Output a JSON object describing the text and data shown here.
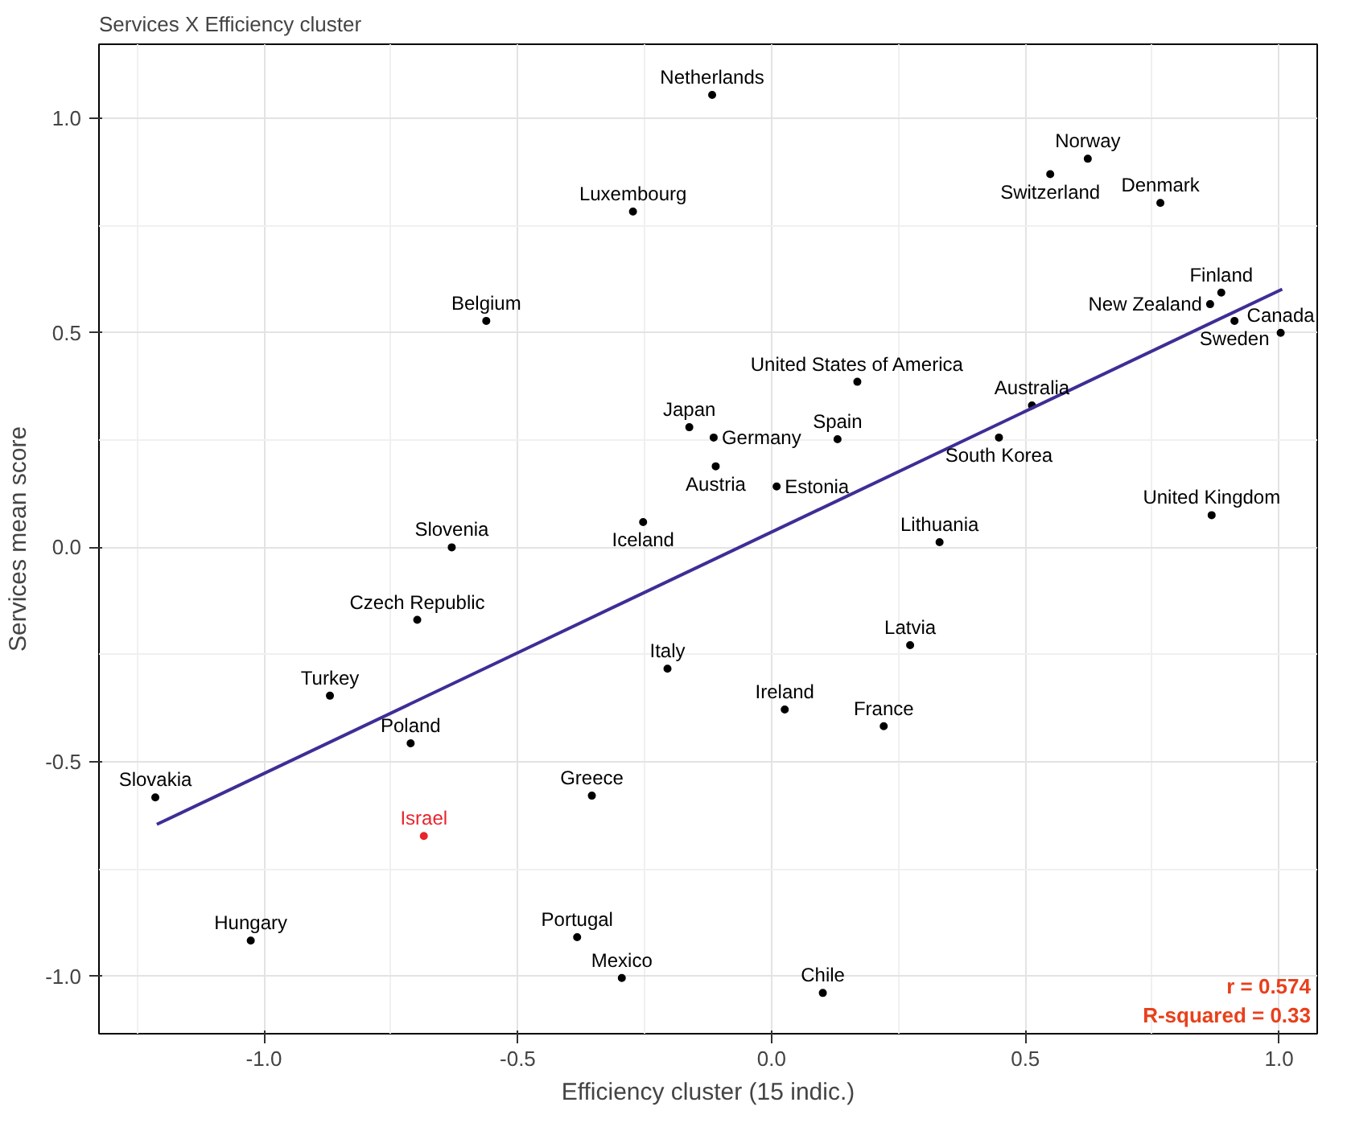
{
  "chart_data": {
    "type": "scatter",
    "title": "Services X Efficiency cluster",
    "xlabel": "Efficiency cluster (15 indic.)",
    "ylabel": "Services mean score",
    "xlim": [
      -1.325,
      1.075
    ],
    "ylim": [
      -1.134,
      1.173
    ],
    "xticks": [
      {
        "value": -1.0,
        "label": "-1.0"
      },
      {
        "value": -0.5,
        "label": "-0.5"
      },
      {
        "value": 0.0,
        "label": "0.0"
      },
      {
        "value": 0.5,
        "label": "0.5"
      },
      {
        "value": 1.0,
        "label": "1.0"
      }
    ],
    "yticks": [
      {
        "value": -1.0,
        "label": "-1.0"
      },
      {
        "value": -0.5,
        "label": "-0.5"
      },
      {
        "value": 0.0,
        "label": "0.0"
      },
      {
        "value": 0.5,
        "label": "0.5"
      },
      {
        "value": 1.0,
        "label": "1.0"
      }
    ],
    "grid": true,
    "series": [
      {
        "color": "#000000",
        "marker": "circle",
        "x": [
          -0.117,
          0.623,
          0.549,
          0.766,
          -0.273,
          0.886,
          0.864,
          0.912,
          1.003,
          -0.562,
          0.169,
          0.513,
          -0.162,
          -0.114,
          0.13,
          0.448,
          -0.11,
          0.01,
          -0.253,
          -0.63,
          0.331,
          0.867,
          -0.698,
          0.273,
          -0.205,
          -0.87,
          0.026,
          0.221,
          -0.711,
          -1.214,
          -0.354,
          -1.026,
          -0.383,
          -0.295,
          0.101
        ],
        "values": [
          1.055,
          0.906,
          0.87,
          0.803,
          0.783,
          0.594,
          0.567,
          0.528,
          0.5,
          0.528,
          0.386,
          0.331,
          0.28,
          0.256,
          0.252,
          0.256,
          0.189,
          0.142,
          0.059,
          0.0,
          0.012,
          0.075,
          -0.169,
          -0.228,
          -0.283,
          -0.346,
          -0.378,
          -0.417,
          -0.457,
          -0.583,
          -0.579,
          -0.917,
          -0.909,
          -1.004,
          -1.039
        ],
        "value_labels": [
          "Netherlands",
          "Norway",
          "Switzerland",
          "Denmark",
          "Luxembourg",
          "Finland",
          "New Zealand",
          "Sweden",
          "Canada",
          "Belgium",
          "United States of America",
          "Australia",
          "Japan",
          "Germany",
          "Spain",
          "South Korea",
          "Austria",
          "Estonia",
          "Iceland",
          "Slovenia",
          "Lithuania",
          "United Kingdom",
          "Czech Republic",
          "Latvia",
          "Italy",
          "Turkey",
          "Ireland",
          "France",
          "Poland",
          "Slovakia",
          "Greece",
          "Hungary",
          "Portugal",
          "Mexico",
          "Chile"
        ]
      },
      {
        "color": "#e8252a",
        "marker": "circle",
        "x": [
          -0.685
        ],
        "values": [
          -0.673
        ],
        "value_labels": [
          "Israel"
        ]
      },
      {
        "type": "line",
        "color": "#3f2d96",
        "x": [
          -1.211,
          1.006
        ],
        "values": [
          -0.646,
          0.602
        ]
      }
    ],
    "annotations": [
      "r = 0.574",
      "R-squared = 0.33"
    ]
  }
}
